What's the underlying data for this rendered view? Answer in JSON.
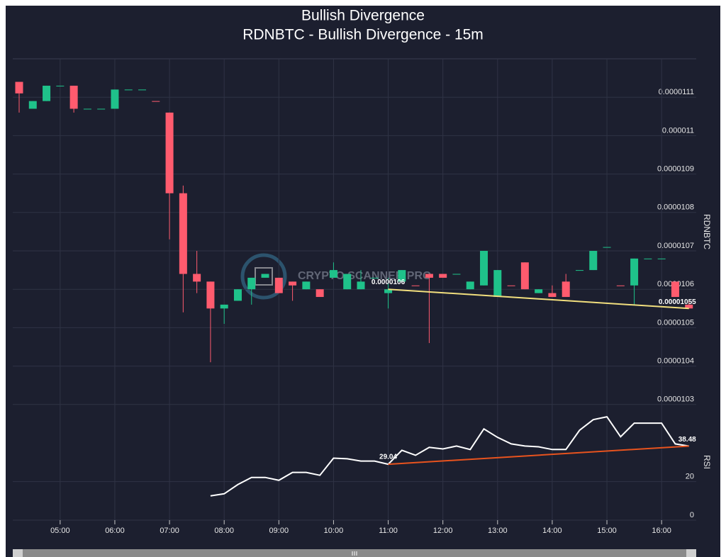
{
  "watermark": "CRYPTO SCANNER PRO",
  "chart_data": [
    {
      "type": "candlestick",
      "title": "Bullish Divergence",
      "subtitle": "RDNBTC - Bullish Divergence - 15m",
      "y_label": "RDNBTC",
      "up_color": "#1fc28a",
      "down_color": "#ff5b6e",
      "x": [
        "04:15",
        "04:30",
        "04:45",
        "05:00",
        "05:15",
        "05:30",
        "05:45",
        "06:00",
        "06:15",
        "06:30",
        "06:45",
        "07:00",
        "07:15",
        "07:30",
        "07:45",
        "08:00",
        "08:15",
        "08:30",
        "08:45",
        "09:00",
        "09:15",
        "09:30",
        "09:45",
        "10:00",
        "10:15",
        "10:30",
        "10:45",
        "11:00",
        "11:15",
        "11:30",
        "11:45",
        "12:00",
        "12:15",
        "12:30",
        "12:45",
        "13:00",
        "13:15",
        "13:30",
        "13:45",
        "14:00",
        "14:15",
        "14:30",
        "14:45",
        "15:00",
        "15:15",
        "15:30",
        "15:45",
        "16:00",
        "16:15",
        "16:30"
      ],
      "open": [
        1.114e-05,
        1.107e-05,
        1.109e-05,
        1.113e-05,
        1.113e-05,
        1.107e-05,
        1.107e-05,
        1.107e-05,
        1.112e-05,
        1.112e-05,
        1.109e-05,
        1.106e-05,
        1.085e-05,
        1.064e-05,
        1.062e-05,
        1.055e-05,
        1.057e-05,
        1.06e-05,
        1.063e-05,
        1.063e-05,
        1.062e-05,
        1.06e-05,
        1.06e-05,
        1.063e-05,
        1.06e-05,
        1.06e-05,
        1.063e-05,
        1.059e-05,
        1.062e-05,
        1.061e-05,
        1.064e-05,
        1.064e-05,
        1.064e-05,
        1.06e-05,
        1.061e-05,
        1.058e-05,
        1.061e-05,
        1.067e-05,
        1.059e-05,
        1.059e-05,
        1.062e-05,
        1.065e-05,
        1.065e-05,
        1.071e-05,
        1.061e-05,
        1.061e-05,
        1.068e-05,
        1.068e-05,
        1.062e-05,
        1.056e-05
      ],
      "high": [
        1.114e-05,
        1.109e-05,
        1.113e-05,
        1.113e-05,
        1.113e-05,
        1.107e-05,
        1.107e-05,
        1.112e-05,
        1.112e-05,
        1.112e-05,
        1.109e-05,
        1.106e-05,
        1.087e-05,
        1.07e-05,
        1.062e-05,
        1.056e-05,
        1.06e-05,
        1.063e-05,
        1.064e-05,
        1.063e-05,
        1.062e-05,
        1.062e-05,
        1.06e-05,
        1.067e-05,
        1.064e-05,
        1.065e-05,
        1.063e-05,
        1.063e-05,
        1.065e-05,
        1.061e-05,
        1.064e-05,
        1.064e-05,
        1.064e-05,
        1.062e-05,
        1.07e-05,
        1.065e-05,
        1.061e-05,
        1.067e-05,
        1.06e-05,
        1.061e-05,
        1.064e-05,
        1.065e-05,
        1.07e-05,
        1.071e-05,
        1.061e-05,
        1.068e-05,
        1.068e-05,
        1.068e-05,
        1.062e-05,
        1.057e-05
      ],
      "low": [
        1.106e-05,
        1.107e-05,
        1.109e-05,
        1.113e-05,
        1.106e-05,
        1.107e-05,
        1.107e-05,
        1.107e-05,
        1.112e-05,
        1.112e-05,
        1.109e-05,
        1.073e-05,
        1.054e-05,
        1.059e-05,
        1.041e-05,
        1.051e-05,
        1.057e-05,
        1.056e-05,
        1.063e-05,
        1.059e-05,
        1.057e-05,
        1.06e-05,
        1.058e-05,
        1.063e-05,
        1.06e-05,
        1.06e-05,
        1.063e-05,
        1.055e-05,
        1.062e-05,
        1.061e-05,
        1.046e-05,
        1.063e-05,
        1.064e-05,
        1.06e-05,
        1.061e-05,
        1.058e-05,
        1.061e-05,
        1.06e-05,
        1.059e-05,
        1.058e-05,
        1.058e-05,
        1.065e-05,
        1.065e-05,
        1.071e-05,
        1.061e-05,
        1.056e-05,
        1.068e-05,
        1.068e-05,
        1.058e-05,
        1.055e-05
      ],
      "close": [
        1.111e-05,
        1.109e-05,
        1.113e-05,
        1.113e-05,
        1.107e-05,
        1.107e-05,
        1.107e-05,
        1.112e-05,
        1.112e-05,
        1.112e-05,
        1.109e-05,
        1.085e-05,
        1.064e-05,
        1.062e-05,
        1.055e-05,
        1.056e-05,
        1.06e-05,
        1.063e-05,
        1.064e-05,
        1.059e-05,
        1.061e-05,
        1.062e-05,
        1.058e-05,
        1.065e-05,
        1.064e-05,
        1.062e-05,
        1.063e-05,
        1.06e-05,
        1.065e-05,
        1.061e-05,
        1.063e-05,
        1.063e-05,
        1.064e-05,
        1.062e-05,
        1.07e-05,
        1.065e-05,
        1.061e-05,
        1.06e-05,
        1.06e-05,
        1.058e-05,
        1.058e-05,
        1.065e-05,
        1.07e-05,
        1.071e-05,
        1.061e-05,
        1.068e-05,
        1.068e-05,
        1.068e-05,
        1.058e-05,
        1.055e-05
      ],
      "ylim": [
        1.02e-05,
        1.12e-05
      ],
      "yticks": [
        1.03e-05,
        1.04e-05,
        1.05e-05,
        1.06e-05,
        1.07e-05,
        1.08e-05,
        1.09e-05,
        1.1e-05,
        1.11e-05
      ],
      "divergence": {
        "x": [
          "11:00",
          "16:30"
        ],
        "values": [
          1.06e-05,
          1.055e-05
        ],
        "color": "#f2df7e"
      }
    },
    {
      "type": "line",
      "y_label": "RSI",
      "color": "#ffffff",
      "x": [
        "04:15",
        "04:30",
        "04:45",
        "05:00",
        "05:15",
        "05:30",
        "05:45",
        "06:00",
        "06:15",
        "06:30",
        "06:45",
        "07:00",
        "07:15",
        "07:30",
        "07:45",
        "08:00",
        "08:15",
        "08:30",
        "08:45",
        "09:00",
        "09:15",
        "09:30",
        "09:45",
        "10:00",
        "10:15",
        "10:30",
        "10:45",
        "11:00",
        "11:15",
        "11:30",
        "11:45",
        "12:00",
        "12:15",
        "12:30",
        "12:45",
        "13:00",
        "13:15",
        "13:30",
        "13:45",
        "14:00",
        "14:15",
        "14:30",
        "14:45",
        "15:00",
        "15:15",
        "15:30",
        "15:45",
        "16:00",
        "16:15",
        "16:30"
      ],
      "values": [
        null,
        null,
        null,
        null,
        null,
        null,
        null,
        null,
        null,
        null,
        null,
        null,
        null,
        null,
        12.6,
        13.7,
        18.5,
        22.2,
        22.2,
        20.7,
        24.8,
        24.8,
        23.3,
        32.2,
        31.9,
        30.7,
        30.7,
        29.04,
        36.3,
        33.7,
        37.8,
        37.0,
        38.5,
        36.7,
        47.4,
        43.0,
        39.6,
        38.5,
        38.1,
        36.7,
        36.7,
        46.7,
        52.2,
        53.7,
        43.3,
        50.4,
        50.4,
        50.4,
        39.6,
        38.48
      ],
      "ylim": [
        0,
        60
      ],
      "yticks": [
        0,
        20
      ],
      "xticks": [
        "05:00",
        "06:00",
        "07:00",
        "08:00",
        "09:00",
        "10:00",
        "11:00",
        "12:00",
        "13:00",
        "14:00",
        "15:00",
        "16:00"
      ],
      "divergence": {
        "x": [
          "11:00",
          "16:30"
        ],
        "values": [
          29.04,
          38.48
        ],
        "color": "#e8531e"
      }
    }
  ]
}
